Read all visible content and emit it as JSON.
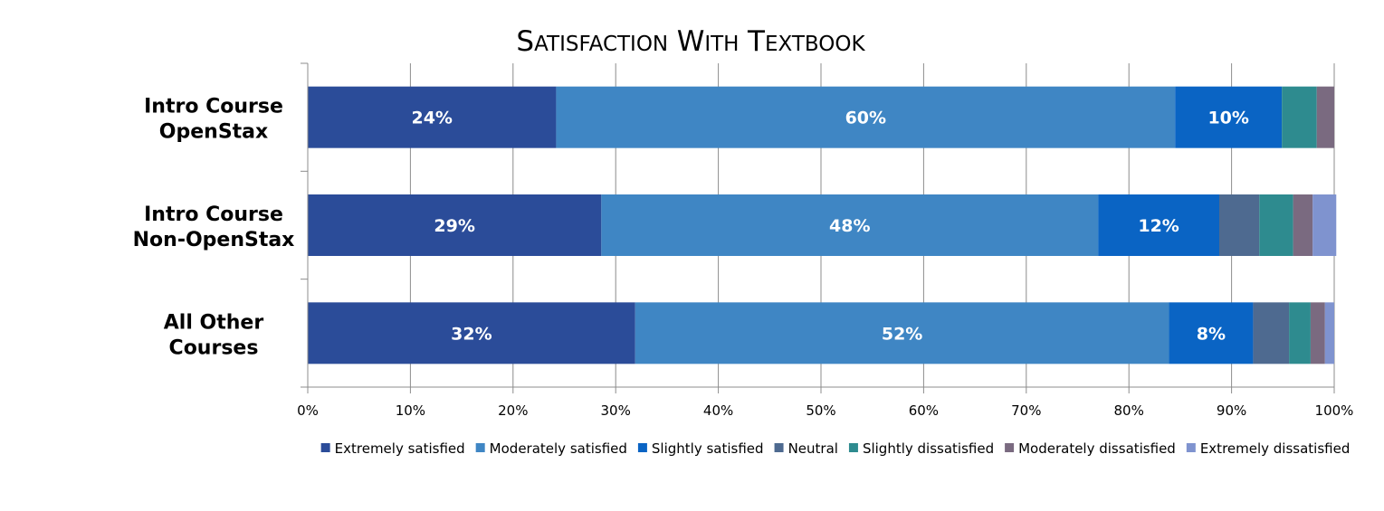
{
  "chart_data": {
    "type": "bar",
    "orientation": "horizontal",
    "stacked": "percent",
    "title": "Satisfaction with Textbook",
    "categories": [
      [
        "Intro Course",
        "OpenStax"
      ],
      [
        "Intro Course",
        "Non-OpenStax"
      ],
      [
        "All Other",
        "Courses"
      ]
    ],
    "series": [
      {
        "name": "Extremely satisfied",
        "color": "#2B4C99",
        "values": [
          24.2,
          28.6,
          31.9
        ],
        "labels": [
          "24%",
          "29%",
          "32%"
        ]
      },
      {
        "name": "Moderately satisfied",
        "color": "#3F86C4",
        "values": [
          60.3,
          48.4,
          52.0
        ],
        "labels": [
          "60%",
          "48%",
          "52%"
        ]
      },
      {
        "name": "Slightly satisfied",
        "color": "#0A64C4",
        "values": [
          10.4,
          11.8,
          8.2
        ],
        "labels": [
          "10%",
          "12%",
          "8%"
        ]
      },
      {
        "name": "Neutral",
        "color": "#4E6A90",
        "values": [
          0,
          3.9,
          3.5
        ],
        "labels": [
          "",
          "",
          ""
        ]
      },
      {
        "name": "Slightly dissatisfied",
        "color": "#2E8B8F",
        "values": [
          3.4,
          3.3,
          2.1
        ],
        "labels": [
          "",
          "",
          ""
        ]
      },
      {
        "name": "Moderately dissatisfied",
        "color": "#7A6A80",
        "values": [
          1.7,
          1.9,
          1.4
        ],
        "labels": [
          "",
          "",
          ""
        ]
      },
      {
        "name": "Extremely dissatisfied",
        "color": "#7F93CF",
        "values": [
          0,
          2.3,
          0.9
        ],
        "labels": [
          "",
          "",
          ""
        ]
      }
    ],
    "xlim": [
      0,
      100
    ],
    "x_ticks": [
      "0%",
      "10%",
      "20%",
      "30%",
      "40%",
      "50%",
      "60%",
      "70%",
      "80%",
      "90%",
      "100%"
    ],
    "grid": true,
    "legend_position": "bottom"
  }
}
